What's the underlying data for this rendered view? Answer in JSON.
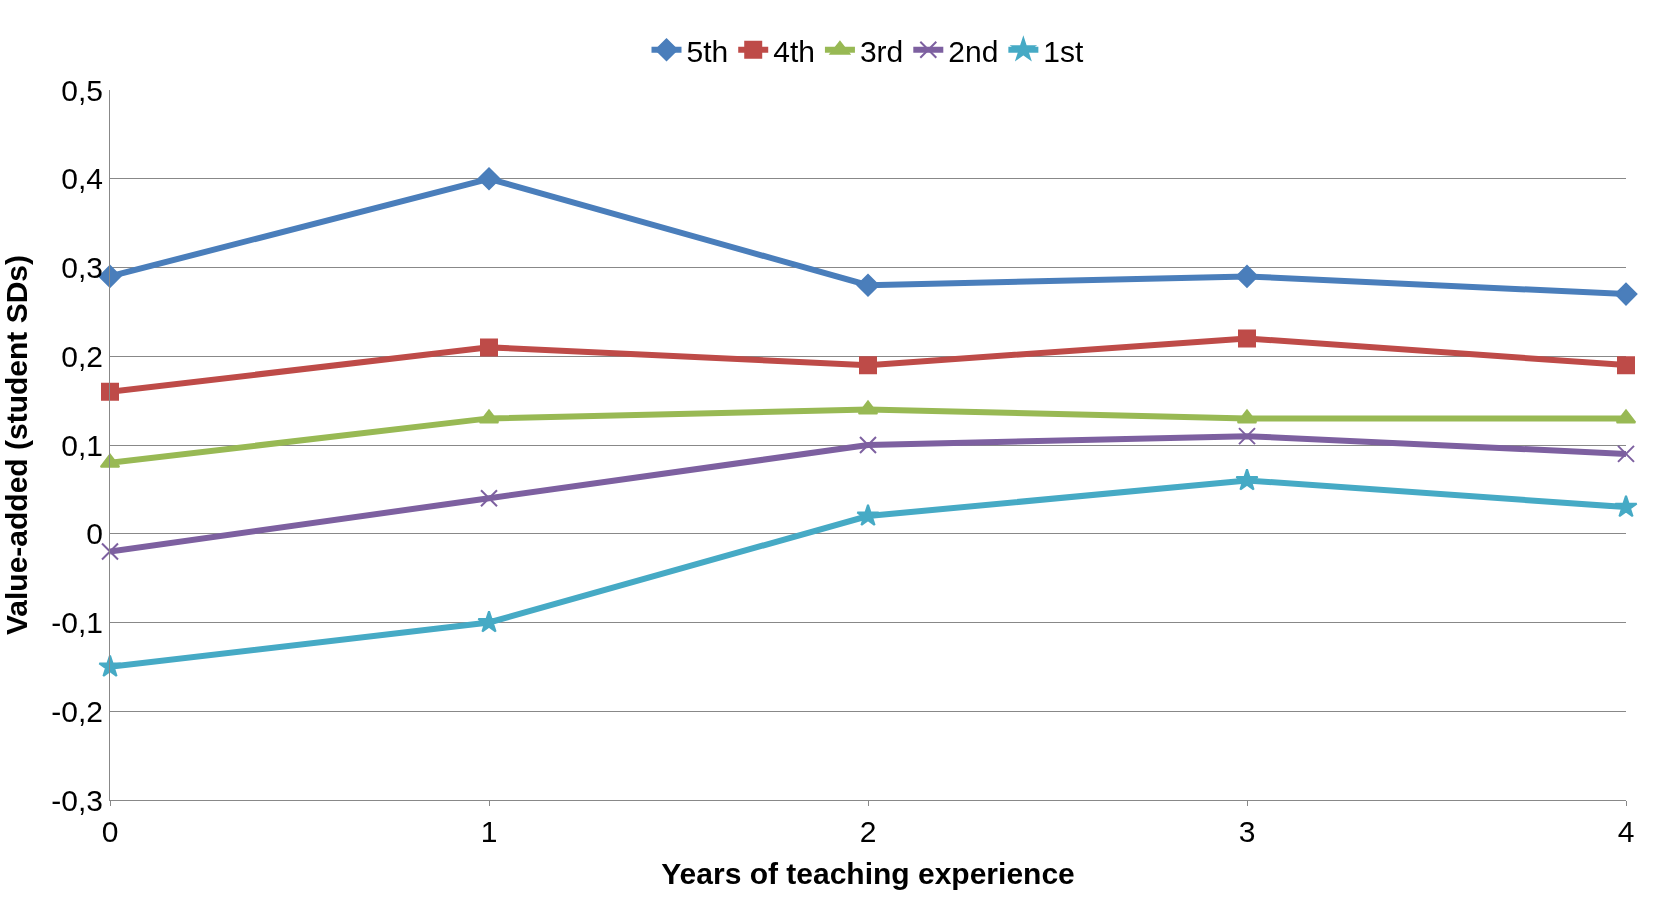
{
  "chart_data": {
    "type": "line",
    "xlabel": "Years of teaching experience",
    "ylabel": "Value-added (student SDs)",
    "x": [
      0,
      1,
      2,
      3,
      4
    ],
    "series": [
      {
        "name": "5th",
        "color": "#4a7ebb",
        "marker": "diamond",
        "values": [
          0.29,
          0.4,
          0.28,
          0.29,
          0.27
        ]
      },
      {
        "name": "4th",
        "color": "#be4b48",
        "marker": "square",
        "values": [
          0.16,
          0.21,
          0.19,
          0.22,
          0.19
        ]
      },
      {
        "name": "3rd",
        "color": "#98b954",
        "marker": "triangle",
        "values": [
          0.08,
          0.13,
          0.14,
          0.13,
          0.13
        ]
      },
      {
        "name": "2nd",
        "color": "#7d60a0",
        "marker": "cross",
        "values": [
          -0.02,
          0.04,
          0.1,
          0.11,
          0.09
        ]
      },
      {
        "name": "1st",
        "color": "#46aac5",
        "marker": "star",
        "values": [
          -0.15,
          -0.1,
          0.02,
          0.06,
          0.03
        ]
      }
    ],
    "xlim": [
      0,
      4
    ],
    "xticks": [
      0,
      1,
      2,
      3,
      4
    ],
    "ylim": [
      -0.3,
      0.5
    ],
    "yticks": [
      {
        "value": -0.3,
        "label": "-0,3"
      },
      {
        "value": -0.2,
        "label": "-0,2"
      },
      {
        "value": -0.1,
        "label": "-0,1"
      },
      0,
      {
        "value": 0.1,
        "label": "0,1"
      },
      {
        "value": 0.2,
        "label": "0,2"
      },
      {
        "value": 0.3,
        "label": "0,3"
      },
      {
        "value": 0.4,
        "label": "0,4"
      },
      {
        "value": 0.5,
        "label": "0,5"
      }
    ],
    "grid": "y",
    "legend": "top",
    "line_style": "solid"
  }
}
